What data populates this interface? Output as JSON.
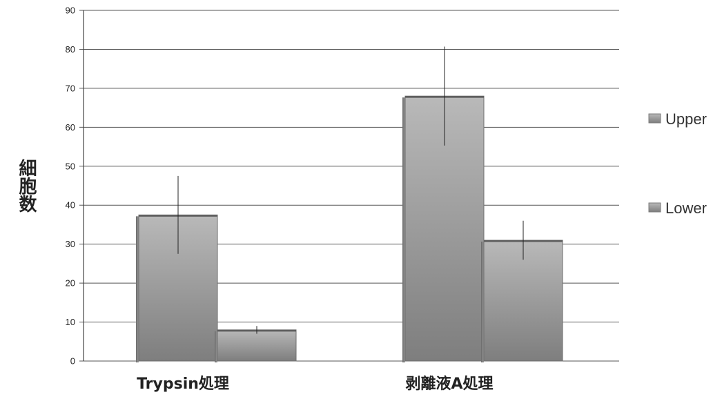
{
  "chart_data": {
    "type": "bar",
    "categories": [
      "Trypsin処理",
      "剥離液A処理"
    ],
    "series": [
      {
        "name": "Upper",
        "values": [
          37.5,
          68.0
        ],
        "error": [
          10.0,
          12.7
        ]
      },
      {
        "name": "Lower",
        "values": [
          8.0,
          31.0
        ],
        "error": [
          1.0,
          5.0
        ]
      }
    ],
    "ylabel": "細胞数",
    "xlabel": "",
    "ylim": [
      0,
      90
    ],
    "yticks": [
      0,
      10,
      20,
      30,
      40,
      50,
      60,
      70,
      80,
      90
    ],
    "grid": true,
    "legend_position": "right",
    "colors": {
      "bar_light": "#b8b8b8",
      "bar_dark": "#7a7a7a",
      "grid": "#555555",
      "text": "#222222"
    }
  }
}
